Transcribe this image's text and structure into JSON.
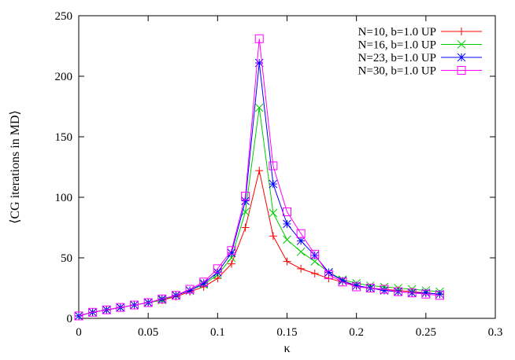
{
  "chart_data": {
    "type": "line",
    "title": "",
    "xlabel": "κ",
    "ylabel": "⟨CG iterations in MD⟩",
    "xlim": [
      0,
      0.3
    ],
    "ylim": [
      0,
      250
    ],
    "xticks": [
      {
        "value": 0,
        "label": "0"
      },
      {
        "value": 0.05,
        "label": "0.05"
      },
      {
        "value": 0.1,
        "label": "0.1"
      },
      {
        "value": 0.15,
        "label": "0.15"
      },
      {
        "value": 0.2,
        "label": "0.2"
      },
      {
        "value": 0.25,
        "label": "0.25"
      },
      {
        "value": 0.3,
        "label": "0.3"
      }
    ],
    "yticks": [
      {
        "value": 0,
        "label": "0"
      },
      {
        "value": 50,
        "label": "50"
      },
      {
        "value": 100,
        "label": "100"
      },
      {
        "value": 150,
        "label": "150"
      },
      {
        "value": 200,
        "label": "200"
      },
      {
        "value": 250,
        "label": "250"
      }
    ],
    "legend_position": "top-right",
    "x": [
      0,
      0.01,
      0.02,
      0.03,
      0.04,
      0.05,
      0.06,
      0.07,
      0.08,
      0.09,
      0.1,
      0.11,
      0.12,
      0.13,
      0.14,
      0.15,
      0.16,
      0.17,
      0.18,
      0.19,
      0.2,
      0.21,
      0.22,
      0.23,
      0.24,
      0.25,
      0.26
    ],
    "series": [
      {
        "name": "N=10, b=1.0 UP",
        "color": "#ff0000",
        "marker": "plus",
        "values": [
          2,
          5,
          7,
          9,
          11,
          13,
          15,
          18,
          22,
          26,
          33,
          45,
          75,
          122,
          68,
          47,
          41,
          37,
          33,
          30,
          27,
          25,
          24,
          23,
          22,
          21,
          20
        ]
      },
      {
        "name": "N=16, b=1.0 UP",
        "color": "#00cc00",
        "marker": "cross",
        "values": [
          2,
          5,
          7,
          9,
          11,
          13,
          15,
          19,
          23,
          28,
          36,
          50,
          88,
          174,
          87,
          65,
          55,
          47,
          38,
          32,
          29,
          27,
          26,
          25,
          24,
          23,
          22
        ]
      },
      {
        "name": "N=23, b=1.0 UP",
        "color": "#0000ff",
        "marker": "star",
        "values": [
          2,
          5,
          7,
          9,
          11,
          13,
          16,
          19,
          23,
          29,
          38,
          54,
          97,
          211,
          111,
          78,
          64,
          52,
          38,
          31,
          27,
          25,
          23,
          22,
          21,
          21,
          20
        ]
      },
      {
        "name": "N=30, b=1.0 UP",
        "color": "#ff00ff",
        "marker": "square",
        "values": [
          2,
          5,
          7,
          9,
          11,
          13,
          16,
          19,
          24,
          30,
          41,
          56,
          101,
          231,
          126,
          88,
          70,
          53,
          36,
          30,
          26,
          25,
          24,
          22,
          21,
          20,
          19
        ]
      }
    ]
  }
}
